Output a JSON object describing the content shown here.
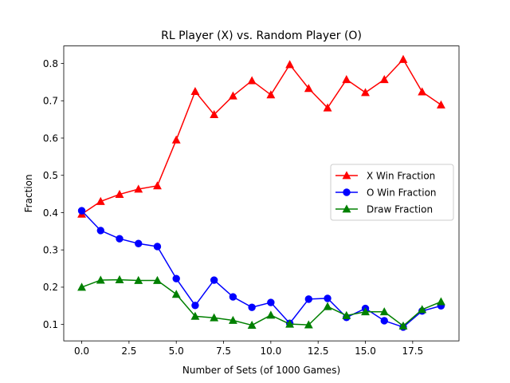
{
  "chart_data": {
    "type": "line",
    "title": "RL Player (X) vs. Random Player (O)",
    "xlabel": "Number of Sets (of 1000 Games)",
    "ylabel": "Fraction",
    "xlim": [
      -0.95,
      19.95
    ],
    "ylim": [
      0.056,
      0.847
    ],
    "xticks": [
      0.0,
      2.5,
      5.0,
      7.5,
      10.0,
      12.5,
      15.0,
      17.5
    ],
    "xtick_labels": [
      "0.0",
      "2.5",
      "5.0",
      "7.5",
      "10.0",
      "12.5",
      "15.0",
      "17.5"
    ],
    "yticks": [
      0.1,
      0.2,
      0.3,
      0.4,
      0.5,
      0.6,
      0.7,
      0.8
    ],
    "ytick_labels": [
      "0.1",
      "0.2",
      "0.3",
      "0.4",
      "0.5",
      "0.6",
      "0.7",
      "0.8"
    ],
    "grid": false,
    "legend_position": "center-right",
    "x": [
      0,
      1,
      2,
      3,
      4,
      5,
      6,
      7,
      8,
      9,
      10,
      11,
      12,
      13,
      14,
      15,
      16,
      17,
      18,
      19
    ],
    "series": [
      {
        "name": "X Win Fraction",
        "color": "#ff0000",
        "marker": "triangle",
        "values": [
          0.396,
          0.43,
          0.449,
          0.463,
          0.472,
          0.595,
          0.725,
          0.663,
          0.713,
          0.754,
          0.716,
          0.797,
          0.733,
          0.681,
          0.757,
          0.722,
          0.757,
          0.811,
          0.724,
          0.689
        ]
      },
      {
        "name": "O Win Fraction",
        "color": "#0000ff",
        "marker": "circle",
        "values": [
          0.405,
          0.352,
          0.33,
          0.317,
          0.309,
          0.223,
          0.151,
          0.219,
          0.174,
          0.146,
          0.159,
          0.103,
          0.168,
          0.17,
          0.119,
          0.143,
          0.11,
          0.093,
          0.136,
          0.15
        ]
      },
      {
        "name": "Draw Fraction",
        "color": "#008000",
        "marker": "triangle",
        "values": [
          0.2,
          0.219,
          0.22,
          0.218,
          0.218,
          0.181,
          0.122,
          0.118,
          0.111,
          0.098,
          0.125,
          0.101,
          0.099,
          0.148,
          0.124,
          0.134,
          0.134,
          0.096,
          0.14,
          0.161
        ]
      }
    ]
  }
}
